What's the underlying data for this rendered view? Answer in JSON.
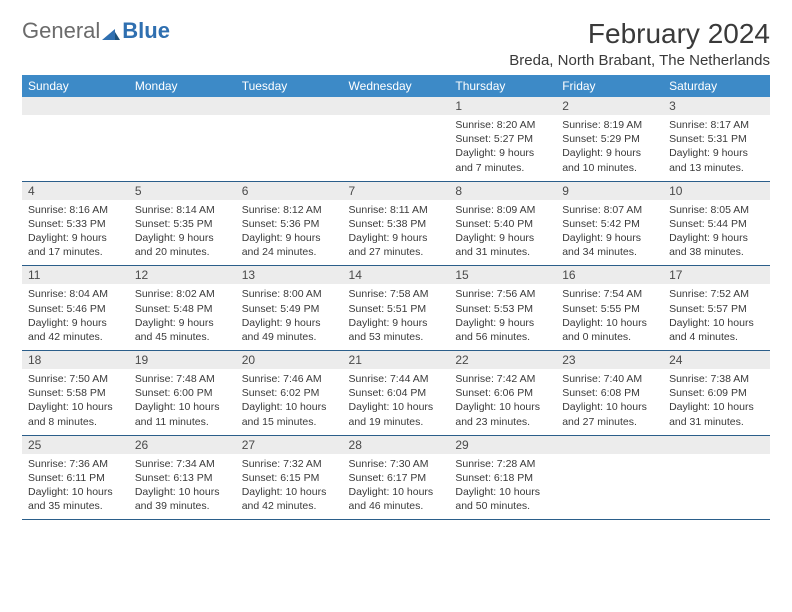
{
  "logo": {
    "general": "General",
    "blue": "Blue"
  },
  "title": "February 2024",
  "location": "Breda, North Brabant, The Netherlands",
  "colors": {
    "header_bg": "#3d8ac7",
    "header_text": "#ffffff",
    "daynum_bg": "#ececec",
    "row_border": "#2b5e8a",
    "text": "#3a3a3a",
    "logo_gray": "#6b6b6b",
    "logo_blue": "#2f6fb0"
  },
  "weekdays": [
    "Sunday",
    "Monday",
    "Tuesday",
    "Wednesday",
    "Thursday",
    "Friday",
    "Saturday"
  ],
  "weeks": [
    [
      null,
      null,
      null,
      null,
      {
        "n": "1",
        "sr": "Sunrise: 8:20 AM",
        "ss": "Sunset: 5:27 PM",
        "d1": "Daylight: 9 hours",
        "d2": "and 7 minutes."
      },
      {
        "n": "2",
        "sr": "Sunrise: 8:19 AM",
        "ss": "Sunset: 5:29 PM",
        "d1": "Daylight: 9 hours",
        "d2": "and 10 minutes."
      },
      {
        "n": "3",
        "sr": "Sunrise: 8:17 AM",
        "ss": "Sunset: 5:31 PM",
        "d1": "Daylight: 9 hours",
        "d2": "and 13 minutes."
      }
    ],
    [
      {
        "n": "4",
        "sr": "Sunrise: 8:16 AM",
        "ss": "Sunset: 5:33 PM",
        "d1": "Daylight: 9 hours",
        "d2": "and 17 minutes."
      },
      {
        "n": "5",
        "sr": "Sunrise: 8:14 AM",
        "ss": "Sunset: 5:35 PM",
        "d1": "Daylight: 9 hours",
        "d2": "and 20 minutes."
      },
      {
        "n": "6",
        "sr": "Sunrise: 8:12 AM",
        "ss": "Sunset: 5:36 PM",
        "d1": "Daylight: 9 hours",
        "d2": "and 24 minutes."
      },
      {
        "n": "7",
        "sr": "Sunrise: 8:11 AM",
        "ss": "Sunset: 5:38 PM",
        "d1": "Daylight: 9 hours",
        "d2": "and 27 minutes."
      },
      {
        "n": "8",
        "sr": "Sunrise: 8:09 AM",
        "ss": "Sunset: 5:40 PM",
        "d1": "Daylight: 9 hours",
        "d2": "and 31 minutes."
      },
      {
        "n": "9",
        "sr": "Sunrise: 8:07 AM",
        "ss": "Sunset: 5:42 PM",
        "d1": "Daylight: 9 hours",
        "d2": "and 34 minutes."
      },
      {
        "n": "10",
        "sr": "Sunrise: 8:05 AM",
        "ss": "Sunset: 5:44 PM",
        "d1": "Daylight: 9 hours",
        "d2": "and 38 minutes."
      }
    ],
    [
      {
        "n": "11",
        "sr": "Sunrise: 8:04 AM",
        "ss": "Sunset: 5:46 PM",
        "d1": "Daylight: 9 hours",
        "d2": "and 42 minutes."
      },
      {
        "n": "12",
        "sr": "Sunrise: 8:02 AM",
        "ss": "Sunset: 5:48 PM",
        "d1": "Daylight: 9 hours",
        "d2": "and 45 minutes."
      },
      {
        "n": "13",
        "sr": "Sunrise: 8:00 AM",
        "ss": "Sunset: 5:49 PM",
        "d1": "Daylight: 9 hours",
        "d2": "and 49 minutes."
      },
      {
        "n": "14",
        "sr": "Sunrise: 7:58 AM",
        "ss": "Sunset: 5:51 PM",
        "d1": "Daylight: 9 hours",
        "d2": "and 53 minutes."
      },
      {
        "n": "15",
        "sr": "Sunrise: 7:56 AM",
        "ss": "Sunset: 5:53 PM",
        "d1": "Daylight: 9 hours",
        "d2": "and 56 minutes."
      },
      {
        "n": "16",
        "sr": "Sunrise: 7:54 AM",
        "ss": "Sunset: 5:55 PM",
        "d1": "Daylight: 10 hours",
        "d2": "and 0 minutes."
      },
      {
        "n": "17",
        "sr": "Sunrise: 7:52 AM",
        "ss": "Sunset: 5:57 PM",
        "d1": "Daylight: 10 hours",
        "d2": "and 4 minutes."
      }
    ],
    [
      {
        "n": "18",
        "sr": "Sunrise: 7:50 AM",
        "ss": "Sunset: 5:58 PM",
        "d1": "Daylight: 10 hours",
        "d2": "and 8 minutes."
      },
      {
        "n": "19",
        "sr": "Sunrise: 7:48 AM",
        "ss": "Sunset: 6:00 PM",
        "d1": "Daylight: 10 hours",
        "d2": "and 11 minutes."
      },
      {
        "n": "20",
        "sr": "Sunrise: 7:46 AM",
        "ss": "Sunset: 6:02 PM",
        "d1": "Daylight: 10 hours",
        "d2": "and 15 minutes."
      },
      {
        "n": "21",
        "sr": "Sunrise: 7:44 AM",
        "ss": "Sunset: 6:04 PM",
        "d1": "Daylight: 10 hours",
        "d2": "and 19 minutes."
      },
      {
        "n": "22",
        "sr": "Sunrise: 7:42 AM",
        "ss": "Sunset: 6:06 PM",
        "d1": "Daylight: 10 hours",
        "d2": "and 23 minutes."
      },
      {
        "n": "23",
        "sr": "Sunrise: 7:40 AM",
        "ss": "Sunset: 6:08 PM",
        "d1": "Daylight: 10 hours",
        "d2": "and 27 minutes."
      },
      {
        "n": "24",
        "sr": "Sunrise: 7:38 AM",
        "ss": "Sunset: 6:09 PM",
        "d1": "Daylight: 10 hours",
        "d2": "and 31 minutes."
      }
    ],
    [
      {
        "n": "25",
        "sr": "Sunrise: 7:36 AM",
        "ss": "Sunset: 6:11 PM",
        "d1": "Daylight: 10 hours",
        "d2": "and 35 minutes."
      },
      {
        "n": "26",
        "sr": "Sunrise: 7:34 AM",
        "ss": "Sunset: 6:13 PM",
        "d1": "Daylight: 10 hours",
        "d2": "and 39 minutes."
      },
      {
        "n": "27",
        "sr": "Sunrise: 7:32 AM",
        "ss": "Sunset: 6:15 PM",
        "d1": "Daylight: 10 hours",
        "d2": "and 42 minutes."
      },
      {
        "n": "28",
        "sr": "Sunrise: 7:30 AM",
        "ss": "Sunset: 6:17 PM",
        "d1": "Daylight: 10 hours",
        "d2": "and 46 minutes."
      },
      {
        "n": "29",
        "sr": "Sunrise: 7:28 AM",
        "ss": "Sunset: 6:18 PM",
        "d1": "Daylight: 10 hours",
        "d2": "and 50 minutes."
      },
      null,
      null
    ]
  ]
}
